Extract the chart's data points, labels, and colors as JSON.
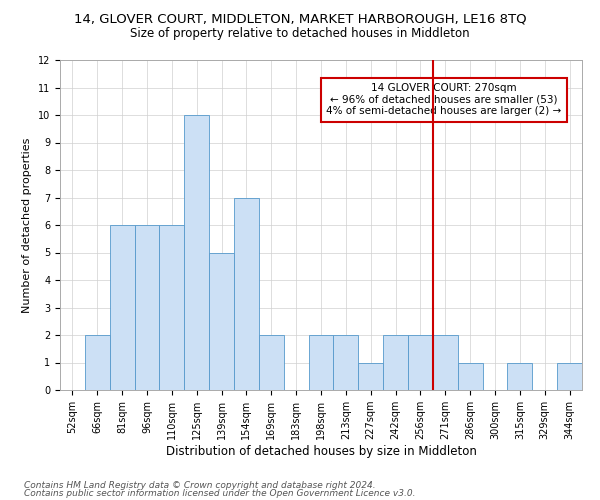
{
  "title": "14, GLOVER COURT, MIDDLETON, MARKET HARBOROUGH, LE16 8TQ",
  "subtitle": "Size of property relative to detached houses in Middleton",
  "xlabel": "Distribution of detached houses by size in Middleton",
  "ylabel": "Number of detached properties",
  "categories": [
    "52sqm",
    "66sqm",
    "81sqm",
    "96sqm",
    "110sqm",
    "125sqm",
    "139sqm",
    "154sqm",
    "169sqm",
    "183sqm",
    "198sqm",
    "213sqm",
    "227sqm",
    "242sqm",
    "256sqm",
    "271sqm",
    "286sqm",
    "300sqm",
    "315sqm",
    "329sqm",
    "344sqm"
  ],
  "values": [
    0,
    2,
    6,
    6,
    6,
    10,
    5,
    7,
    2,
    0,
    2,
    2,
    1,
    2,
    2,
    2,
    1,
    0,
    1,
    0,
    1
  ],
  "bar_color": "#cce0f5",
  "bar_edge_color": "#5599cc",
  "red_line_index": 15,
  "annotation_line1": "14 GLOVER COURT: 270sqm",
  "annotation_line2": "← 96% of detached houses are smaller (53)",
  "annotation_line3": "4% of semi-detached houses are larger (2) →",
  "annotation_box_color": "#cc0000",
  "ylim": [
    0,
    12
  ],
  "yticks": [
    0,
    1,
    2,
    3,
    4,
    5,
    6,
    7,
    8,
    9,
    10,
    11,
    12
  ],
  "grid_color": "#d0d0d0",
  "background_color": "#ffffff",
  "footer_line1": "Contains HM Land Registry data © Crown copyright and database right 2024.",
  "footer_line2": "Contains public sector information licensed under the Open Government Licence v3.0.",
  "title_fontsize": 9.5,
  "subtitle_fontsize": 8.5,
  "ylabel_fontsize": 8,
  "xlabel_fontsize": 8.5,
  "tick_fontsize": 7,
  "annotation_fontsize": 7.5,
  "footer_fontsize": 6.5
}
